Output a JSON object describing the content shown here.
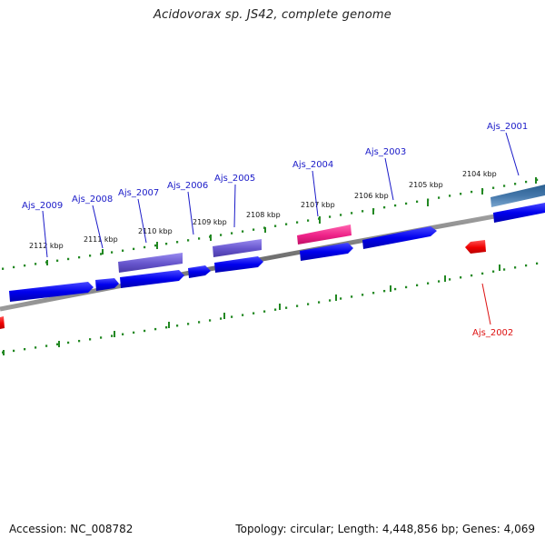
{
  "header": {
    "title": "Acidovorax sp. JS42, complete genome"
  },
  "footer": {
    "accession": "Accession: NC_008782",
    "summary": "Topology: circular; Length: 4,448,856 bp; Genes: 4,069"
  },
  "scale_ticks": [
    {
      "label": "2112 kbp"
    },
    {
      "label": "2111 kbp"
    },
    {
      "label": "2110 kbp"
    },
    {
      "label": "2109 kbp"
    },
    {
      "label": "2108 kbp"
    },
    {
      "label": "2107 kbp"
    },
    {
      "label": "2106 kbp"
    },
    {
      "label": "2105 kbp"
    },
    {
      "label": "2104 kbp"
    }
  ],
  "gene_labels": {
    "ajs_2001": "Ajs_2001",
    "ajs_2002": "Ajs_2002",
    "ajs_2003": "Ajs_2003",
    "ajs_2004": "Ajs_2004",
    "ajs_2005": "Ajs_2005",
    "ajs_2006": "Ajs_2006",
    "ajs_2007": "Ajs_2007",
    "ajs_2008": "Ajs_2008",
    "ajs_2009": "Ajs_2009"
  },
  "colors": {
    "forward_cds": "#0000ee",
    "reverse_cds": "#ee0000",
    "purple_feature": "#6655cc",
    "pink_feature": "#ee2288",
    "steel_feature": "#4477aa",
    "backbone": "#808080",
    "scale": "#228822",
    "label_forward": "#1a1ac8",
    "label_reverse": "#dd1111"
  }
}
